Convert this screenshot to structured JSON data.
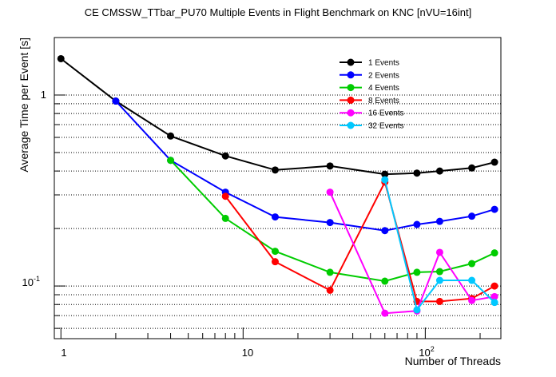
{
  "chart_data": {
    "type": "line",
    "title": "CE CMSSW_TTbar_PU70 Multiple Events in Flight Benchmark on KNC [nVU=16int]",
    "xlabel": "Number of Threads",
    "ylabel": "Average Time per Event [s]",
    "x_scale": "log",
    "y_scale": "log",
    "xlim": [
      0.92,
      260
    ],
    "ylim": [
      0.053,
      2.0
    ],
    "grid": "horizontal dotted at y ticks",
    "legend_position": "top-right",
    "x_tick_labels": [
      {
        "value": 1,
        "label": "1"
      },
      {
        "value": 10,
        "label": "10"
      },
      {
        "value": 100,
        "label": "10^2"
      }
    ],
    "y_tick_labels": [
      {
        "value": 0.1,
        "label": "10^-1"
      },
      {
        "value": 1,
        "label": "1"
      }
    ],
    "series": [
      {
        "name": "1 Events",
        "color": "#000000",
        "x": [
          1,
          2,
          4,
          8,
          15,
          30,
          60,
          90,
          120,
          180,
          240
        ],
        "y": [
          1.55,
          0.93,
          0.61,
          0.48,
          0.405,
          0.425,
          0.385,
          0.39,
          0.4,
          0.415,
          0.445
        ]
      },
      {
        "name": "2 Events",
        "color": "#0000ff",
        "x": [
          2,
          4,
          8,
          15,
          30,
          60,
          90,
          120,
          180,
          240
        ],
        "y": [
          0.93,
          0.455,
          0.31,
          0.23,
          0.215,
          0.195,
          0.21,
          0.218,
          0.232,
          0.252
        ]
      },
      {
        "name": "4 Events",
        "color": "#00cc00",
        "x": [
          4,
          8,
          15,
          30,
          60,
          90,
          120,
          180,
          240
        ],
        "y": [
          0.455,
          0.226,
          0.152,
          0.118,
          0.106,
          0.118,
          0.119,
          0.131,
          0.149
        ]
      },
      {
        "name": "8 Events",
        "color": "#ff0000",
        "x": [
          8,
          15,
          30,
          60,
          90,
          120,
          180,
          240
        ],
        "y": [
          0.295,
          0.134,
          0.095,
          0.35,
          0.083,
          0.083,
          0.086,
          0.1
        ]
      },
      {
        "name": "16 Events",
        "color": "#ff00ff",
        "x": [
          30,
          60,
          90,
          120,
          180,
          240
        ],
        "y": [
          0.31,
          0.072,
          0.074,
          0.15,
          0.084,
          0.088
        ]
      },
      {
        "name": "32 Events",
        "color": "#00c8ff",
        "x": [
          60,
          90,
          120,
          180,
          240
        ],
        "y": [
          0.36,
          0.075,
          0.107,
          0.107,
          0.082
        ]
      }
    ]
  }
}
